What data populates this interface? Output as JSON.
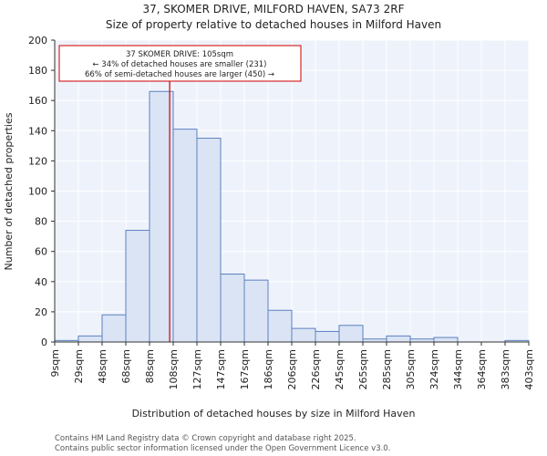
{
  "chart_data": {
    "type": "bar",
    "title_lines": [
      "37, SKOMER DRIVE, MILFORD HAVEN, SA73 2RF",
      "Size of property relative to detached houses in Milford Haven"
    ],
    "xlabel": "Distribution of detached houses by size in Milford Haven",
    "ylabel": "Number of detached properties",
    "bin_edges": [
      9,
      29,
      48,
      68,
      88,
      108,
      127,
      147,
      167,
      186,
      206,
      226,
      245,
      265,
      285,
      305,
      324,
      344,
      364,
      383,
      403
    ],
    "x_tick_labels": [
      "9sqm",
      "29sqm",
      "48sqm",
      "68sqm",
      "88sqm",
      "108sqm",
      "127sqm",
      "147sqm",
      "167sqm",
      "186sqm",
      "206sqm",
      "226sqm",
      "245sqm",
      "265sqm",
      "285sqm",
      "305sqm",
      "324sqm",
      "344sqm",
      "364sqm",
      "383sqm",
      "403sqm"
    ],
    "values": [
      1,
      4,
      18,
      74,
      166,
      141,
      135,
      45,
      41,
      21,
      9,
      7,
      11,
      2,
      4,
      2,
      3,
      0,
      0,
      1
    ],
    "ylim": [
      0,
      200
    ],
    "y_ticks": [
      0,
      20,
      40,
      60,
      80,
      100,
      120,
      140,
      160,
      180,
      200
    ],
    "grid": true,
    "marker": {
      "value": 105,
      "color": "#cc0000"
    },
    "annotation": {
      "lines": [
        "37 SKOMER DRIVE: 105sqm",
        "← 34% of detached houses are smaller (231)",
        "66% of semi-detached houses are larger (450) →"
      ],
      "border_color": "#cc0000"
    },
    "colors": {
      "bar_fill": "#dbe4f5",
      "bar_stroke": "#5b82c0",
      "plot_bg": "#eef2fb",
      "grid": "#ffffff",
      "axis": "#333333"
    }
  },
  "footer": {
    "line1": "Contains HM Land Registry data © Crown copyright and database right 2025.",
    "line2": "Contains public sector information licensed under the Open Government Licence v3.0."
  }
}
